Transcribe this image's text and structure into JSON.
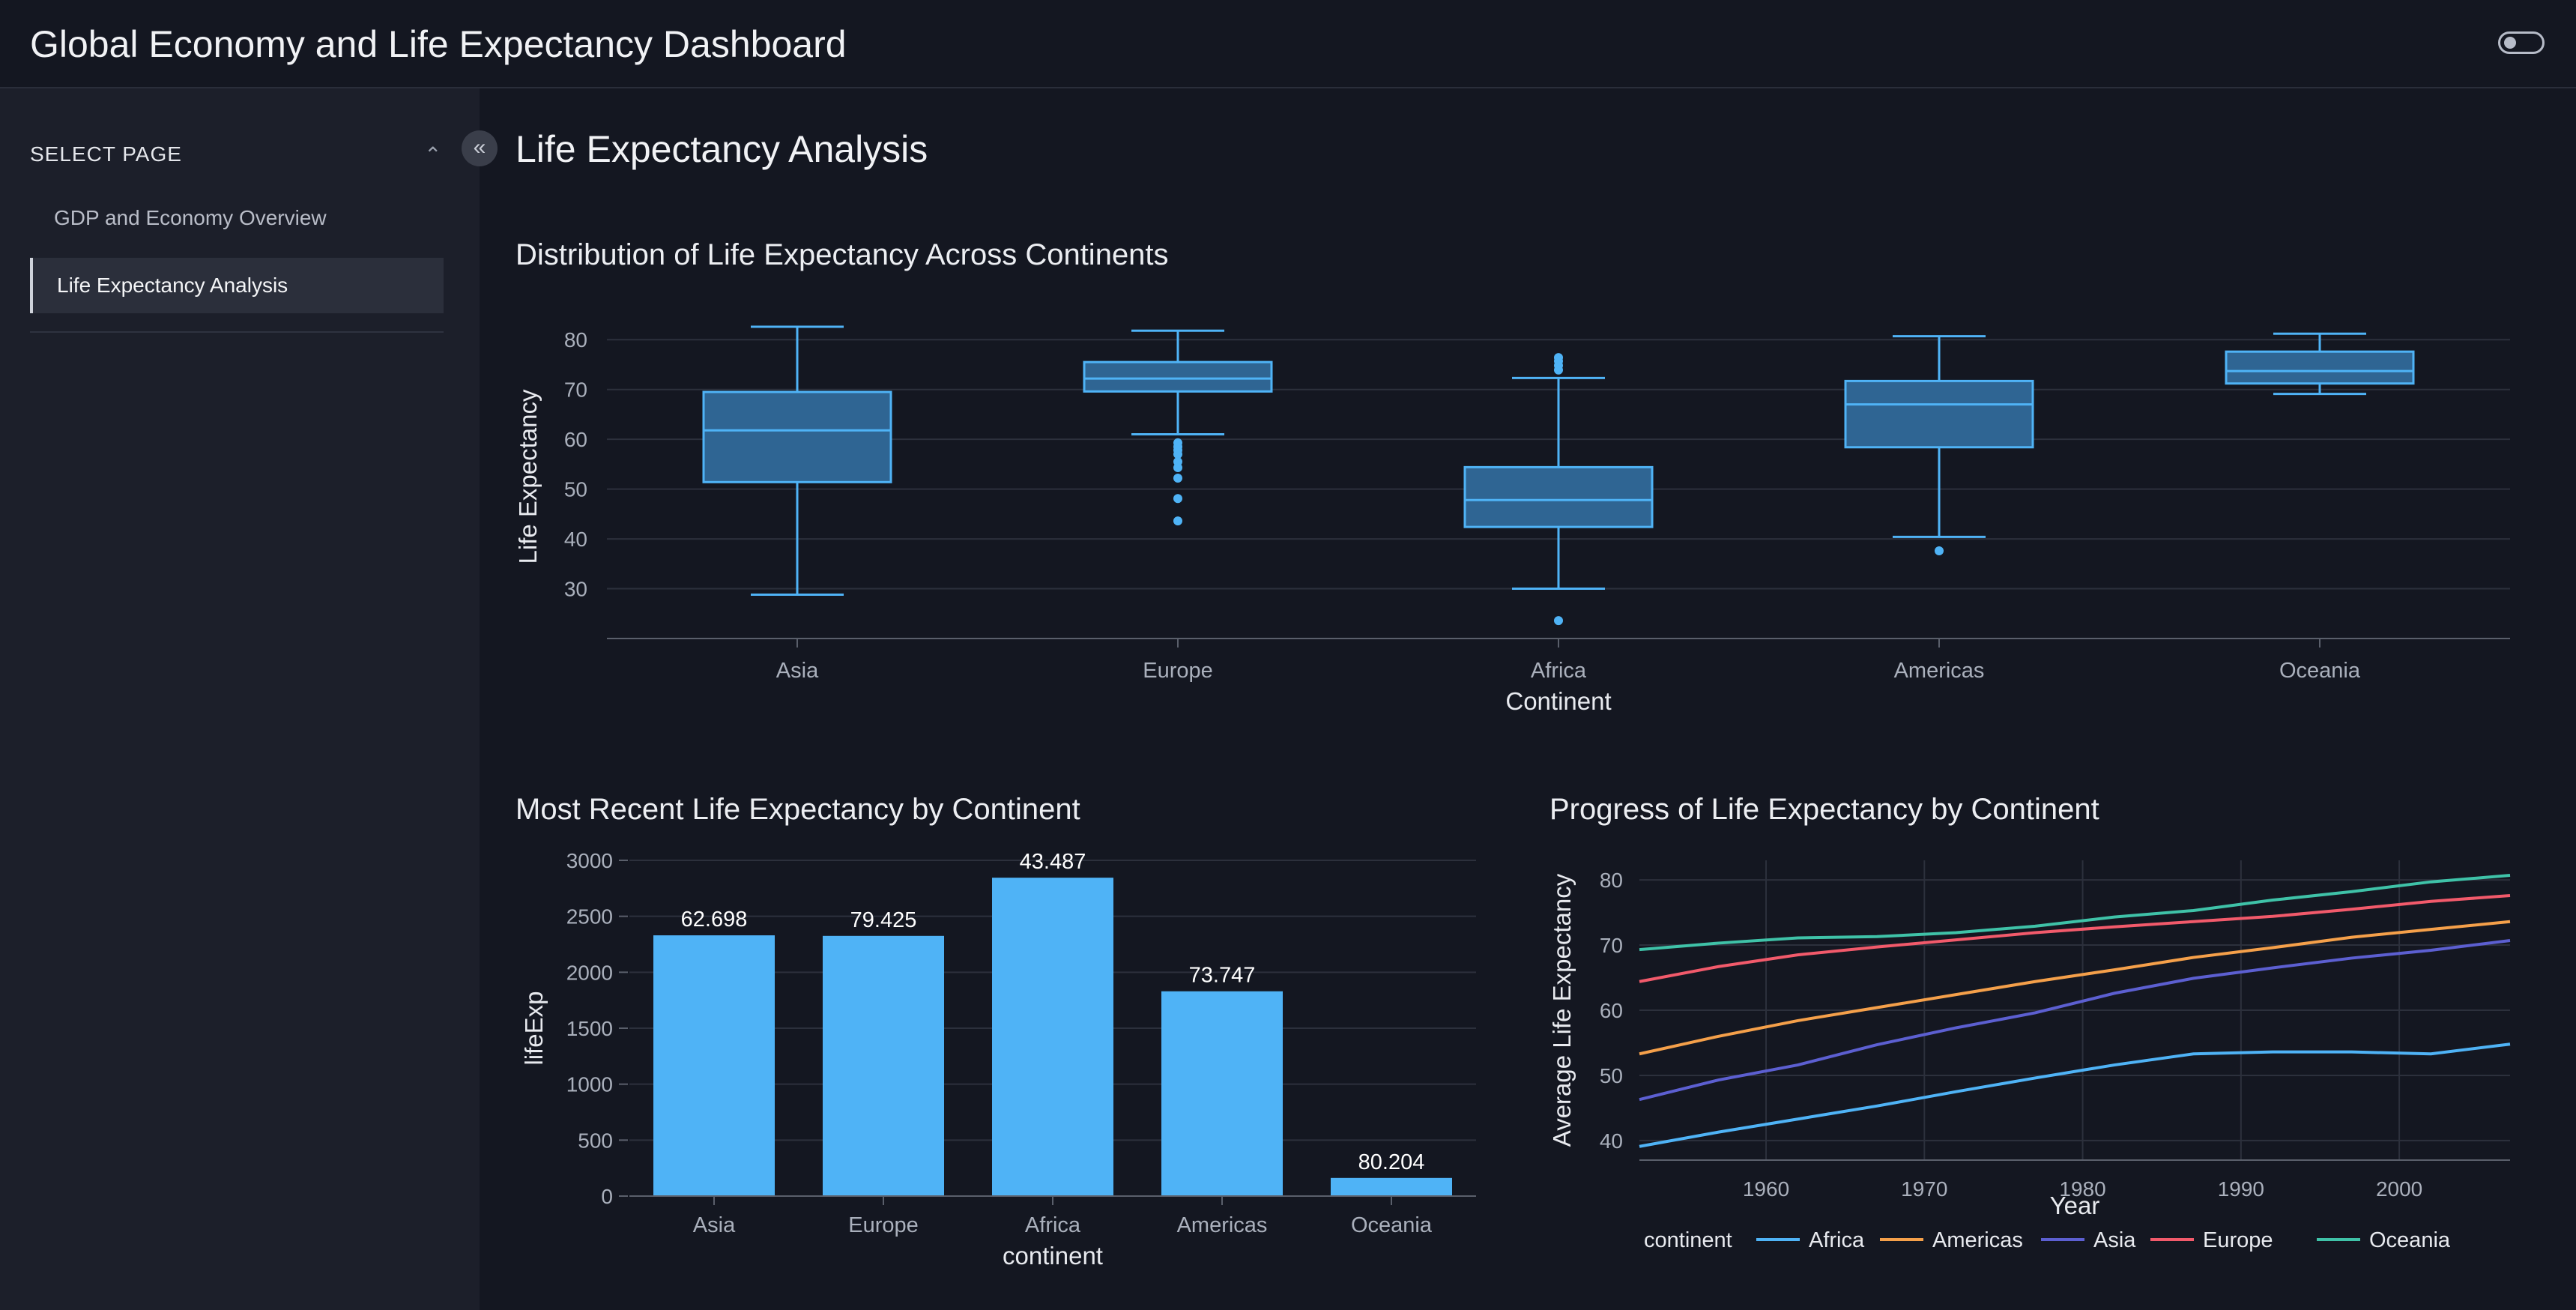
{
  "header": {
    "title": "Global Economy and Life Expectancy Dashboard"
  },
  "sidebar": {
    "section_label": "SELECT PAGE",
    "items": [
      {
        "label": "GDP and Economy Overview",
        "active": false
      },
      {
        "label": "Life Expectancy Analysis",
        "active": true
      }
    ]
  },
  "page": {
    "title": "Life Expectancy Analysis"
  },
  "icons": {
    "collapse": "chevron-double-left-icon",
    "section": "chevron-up-icon",
    "theme": "toggle-switch-icon"
  },
  "colors": {
    "background": "#141721",
    "sidebar": "#1c1f2a",
    "box_fill": "#2f6593",
    "box_line": "#4fb3f6",
    "bar": "#4fb3f6"
  },
  "chart_data": [
    {
      "type": "box",
      "title": "Distribution of Life Expectancy Across Continents",
      "xlabel": "Continent",
      "ylabel": "Life Expectancy",
      "ylim": [
        20,
        85
      ],
      "yticks": [
        30,
        40,
        50,
        60,
        70,
        80
      ],
      "categories": [
        "Asia",
        "Europe",
        "Africa",
        "Americas",
        "Oceania"
      ],
      "boxes": [
        {
          "name": "Asia",
          "min": 28.8,
          "q1": 51.4,
          "median": 61.8,
          "q3": 69.5,
          "max": 82.6,
          "outliers": []
        },
        {
          "name": "Europe",
          "min": 61.0,
          "q1": 69.6,
          "median": 72.2,
          "q3": 75.5,
          "max": 81.8,
          "outliers": [
            59.3,
            58.5,
            57.8,
            57.0,
            55.5,
            54.3,
            52.2,
            48.1,
            43.6
          ]
        },
        {
          "name": "Africa",
          "min": 30.0,
          "q1": 42.4,
          "median": 47.8,
          "q3": 54.4,
          "max": 72.3,
          "outliers": [
            76.4,
            75.7,
            74.8,
            73.9,
            23.6
          ]
        },
        {
          "name": "Americas",
          "min": 40.4,
          "q1": 58.4,
          "median": 67.0,
          "q3": 71.7,
          "max": 80.7,
          "outliers": [
            37.6
          ]
        },
        {
          "name": "Oceania",
          "min": 69.1,
          "q1": 71.2,
          "median": 73.7,
          "q3": 77.6,
          "max": 81.2,
          "outliers": []
        }
      ],
      "grid": true
    },
    {
      "type": "bar",
      "title": "Most Recent Life Expectancy by Continent",
      "xlabel": "continent",
      "ylabel": "lifeExp",
      "ylim": [
        0,
        3000
      ],
      "yticks": [
        0,
        500,
        1000,
        1500,
        2000,
        2500,
        3000
      ],
      "categories": [
        "Asia",
        "Europe",
        "Africa",
        "Americas",
        "Oceania"
      ],
      "values": [
        2330,
        2325,
        2845,
        1830,
        162
      ],
      "data_labels": [
        "62.698",
        "79.425",
        "43.487",
        "73.747",
        "80.204"
      ],
      "grid": true
    },
    {
      "type": "line",
      "title": "Progress of Life Expectancy by Continent",
      "xlabel": "Year",
      "ylabel": "Average Life Expectancy",
      "xlim": [
        1952,
        2007
      ],
      "ylim": [
        37,
        83
      ],
      "xticks": [
        1960,
        1970,
        1980,
        1990,
        2000
      ],
      "yticks": [
        40,
        50,
        60,
        70,
        80
      ],
      "x": [
        1952,
        1957,
        1962,
        1967,
        1972,
        1977,
        1982,
        1987,
        1992,
        1997,
        2002,
        2007
      ],
      "legend_title": "continent",
      "legend_position": "bottom",
      "series": [
        {
          "name": "Africa",
          "color": "#4fb3f6",
          "values": [
            39.1,
            41.3,
            43.3,
            45.3,
            47.5,
            49.6,
            51.6,
            53.3,
            53.6,
            53.6,
            53.3,
            54.8
          ]
        },
        {
          "name": "Americas",
          "color": "#f5a04a",
          "values": [
            53.3,
            56.0,
            58.4,
            60.4,
            62.4,
            64.4,
            66.2,
            68.1,
            69.6,
            71.2,
            72.4,
            73.6
          ]
        },
        {
          "name": "Asia",
          "color": "#5c5fd1",
          "values": [
            46.3,
            49.3,
            51.6,
            54.7,
            57.3,
            59.6,
            62.6,
            64.9,
            66.5,
            68.0,
            69.2,
            70.7
          ]
        },
        {
          "name": "Europe",
          "color": "#f25a6b",
          "values": [
            64.4,
            66.7,
            68.5,
            69.7,
            70.8,
            71.9,
            72.8,
            73.6,
            74.4,
            75.5,
            76.7,
            77.6
          ]
        },
        {
          "name": "Oceania",
          "color": "#3fc2a8",
          "values": [
            69.3,
            70.3,
            71.1,
            71.3,
            71.9,
            72.9,
            74.3,
            75.3,
            76.9,
            78.2,
            79.7,
            80.7
          ]
        }
      ]
    }
  ]
}
